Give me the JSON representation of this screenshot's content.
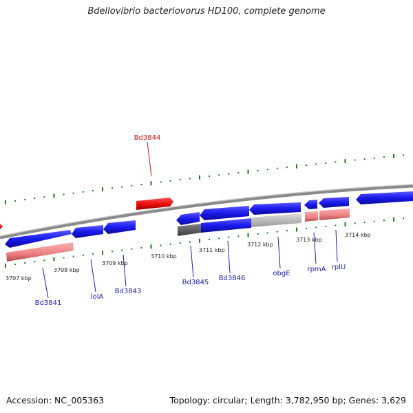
{
  "header": {
    "title": "Bdellovibrio bacteriovorus HD100, complete genome"
  },
  "footer": {
    "accession": "Accession: NC_005363",
    "topology": "Topology: circular; Length: 3,782,950 bp; Genes: 3,629"
  },
  "colors": {
    "forward_gene": "#1a1aee",
    "reverse_gene": "#ee8080",
    "highlight_gene": "#ee1111",
    "backbone": "#8a8a8a",
    "tick": "#1a7a1a",
    "label_blue": "#1a1ab0",
    "label_red": "#cc1111"
  },
  "kbp_labels": [
    "3707 kbp",
    "3708 kbp",
    "3709 kbp",
    "3710 kbp",
    "3711 kbp",
    "3712 kbp",
    "3713 kbp",
    "3714 kbp"
  ],
  "gene_labels": [
    "Bd3841",
    "lolA",
    "Bd3843",
    "Bd3844",
    "Bd3845",
    "Bd3846",
    "obgE",
    "rpmA",
    "rplU"
  ]
}
